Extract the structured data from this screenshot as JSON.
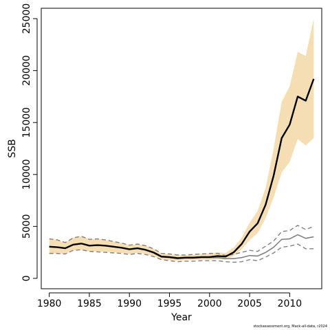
{
  "chart_data": {
    "type": "line",
    "xlabel": "Year",
    "ylabel": "SSB",
    "credit": "stockassessment.org, Mack-all-data, r2024",
    "xlim": [
      1979,
      2014
    ],
    "ylim": [
      -1000,
      26000
    ],
    "x_ticks": [
      1980,
      1985,
      1990,
      1995,
      2000,
      2005,
      2010
    ],
    "y_ticks": [
      0,
      5000,
      10000,
      15000,
      20000,
      25000
    ],
    "x": [
      1980,
      1981,
      1982,
      1983,
      1984,
      1985,
      1986,
      1987,
      1988,
      1989,
      1990,
      1991,
      1992,
      1993,
      1994,
      1995,
      1996,
      1997,
      1998,
      1999,
      2000,
      2001,
      2002,
      2003,
      2004,
      2005,
      2006,
      2007,
      2008,
      2009,
      2010,
      2011,
      2012,
      2013
    ],
    "series": [
      {
        "role": "estimate",
        "color": "#000000",
        "values": [
          3050,
          3000,
          2900,
          3250,
          3350,
          3150,
          3200,
          3150,
          3050,
          2950,
          2800,
          2900,
          2750,
          2500,
          2100,
          2050,
          1950,
          2000,
          2000,
          2050,
          2050,
          2150,
          2100,
          2500,
          3300,
          4500,
          5300,
          7100,
          9900,
          13500,
          14800,
          17500,
          17100,
          19200
        ]
      },
      {
        "role": "confidence-band",
        "color": "#f5deb3",
        "upper": [
          3800,
          3700,
          3450,
          3900,
          4050,
          3750,
          3800,
          3700,
          3550,
          3400,
          3200,
          3300,
          3150,
          2850,
          2400,
          2350,
          2250,
          2250,
          2300,
          2350,
          2400,
          2500,
          2450,
          2950,
          3900,
          5350,
          6500,
          8700,
          12500,
          17000,
          18500,
          21800,
          21400,
          25000
        ],
        "lower": [
          2400,
          2400,
          2350,
          2700,
          2750,
          2600,
          2600,
          2550,
          2500,
          2450,
          2350,
          2450,
          2350,
          2150,
          1800,
          1750,
          1700,
          1750,
          1750,
          1800,
          1800,
          1850,
          1800,
          2150,
          2800,
          3700,
          4350,
          5800,
          7800,
          10200,
          11200,
          13400,
          12800,
          13500
        ]
      },
      {
        "role": "alternative-estimate",
        "color": "#808080",
        "values": [
          3050,
          3000,
          2900,
          3250,
          3350,
          3150,
          3200,
          3150,
          3050,
          2950,
          2800,
          2900,
          2750,
          2450,
          2050,
          2000,
          1900,
          1950,
          1950,
          2000,
          2000,
          2000,
          1900,
          1900,
          2000,
          2200,
          2150,
          2500,
          3000,
          3750,
          3800,
          4200,
          3850,
          4000
        ],
        "upper": [
          3800,
          3700,
          3450,
          3900,
          4050,
          3750,
          3800,
          3700,
          3550,
          3400,
          3200,
          3300,
          3150,
          2850,
          2400,
          2350,
          2250,
          2250,
          2300,
          2350,
          2400,
          2400,
          2200,
          2300,
          2500,
          2700,
          2600,
          3100,
          3600,
          4500,
          4600,
          5100,
          4700,
          5000
        ],
        "lower": [
          2400,
          2400,
          2350,
          2700,
          2750,
          2600,
          2550,
          2500,
          2450,
          2400,
          2300,
          2400,
          2300,
          2100,
          1800,
          1700,
          1600,
          1650,
          1650,
          1700,
          1700,
          1700,
          1600,
          1550,
          1600,
          1800,
          1700,
          2050,
          2450,
          3000,
          3100,
          3300,
          2850,
          2850
        ]
      }
    ],
    "grid": false,
    "legend": "none"
  }
}
